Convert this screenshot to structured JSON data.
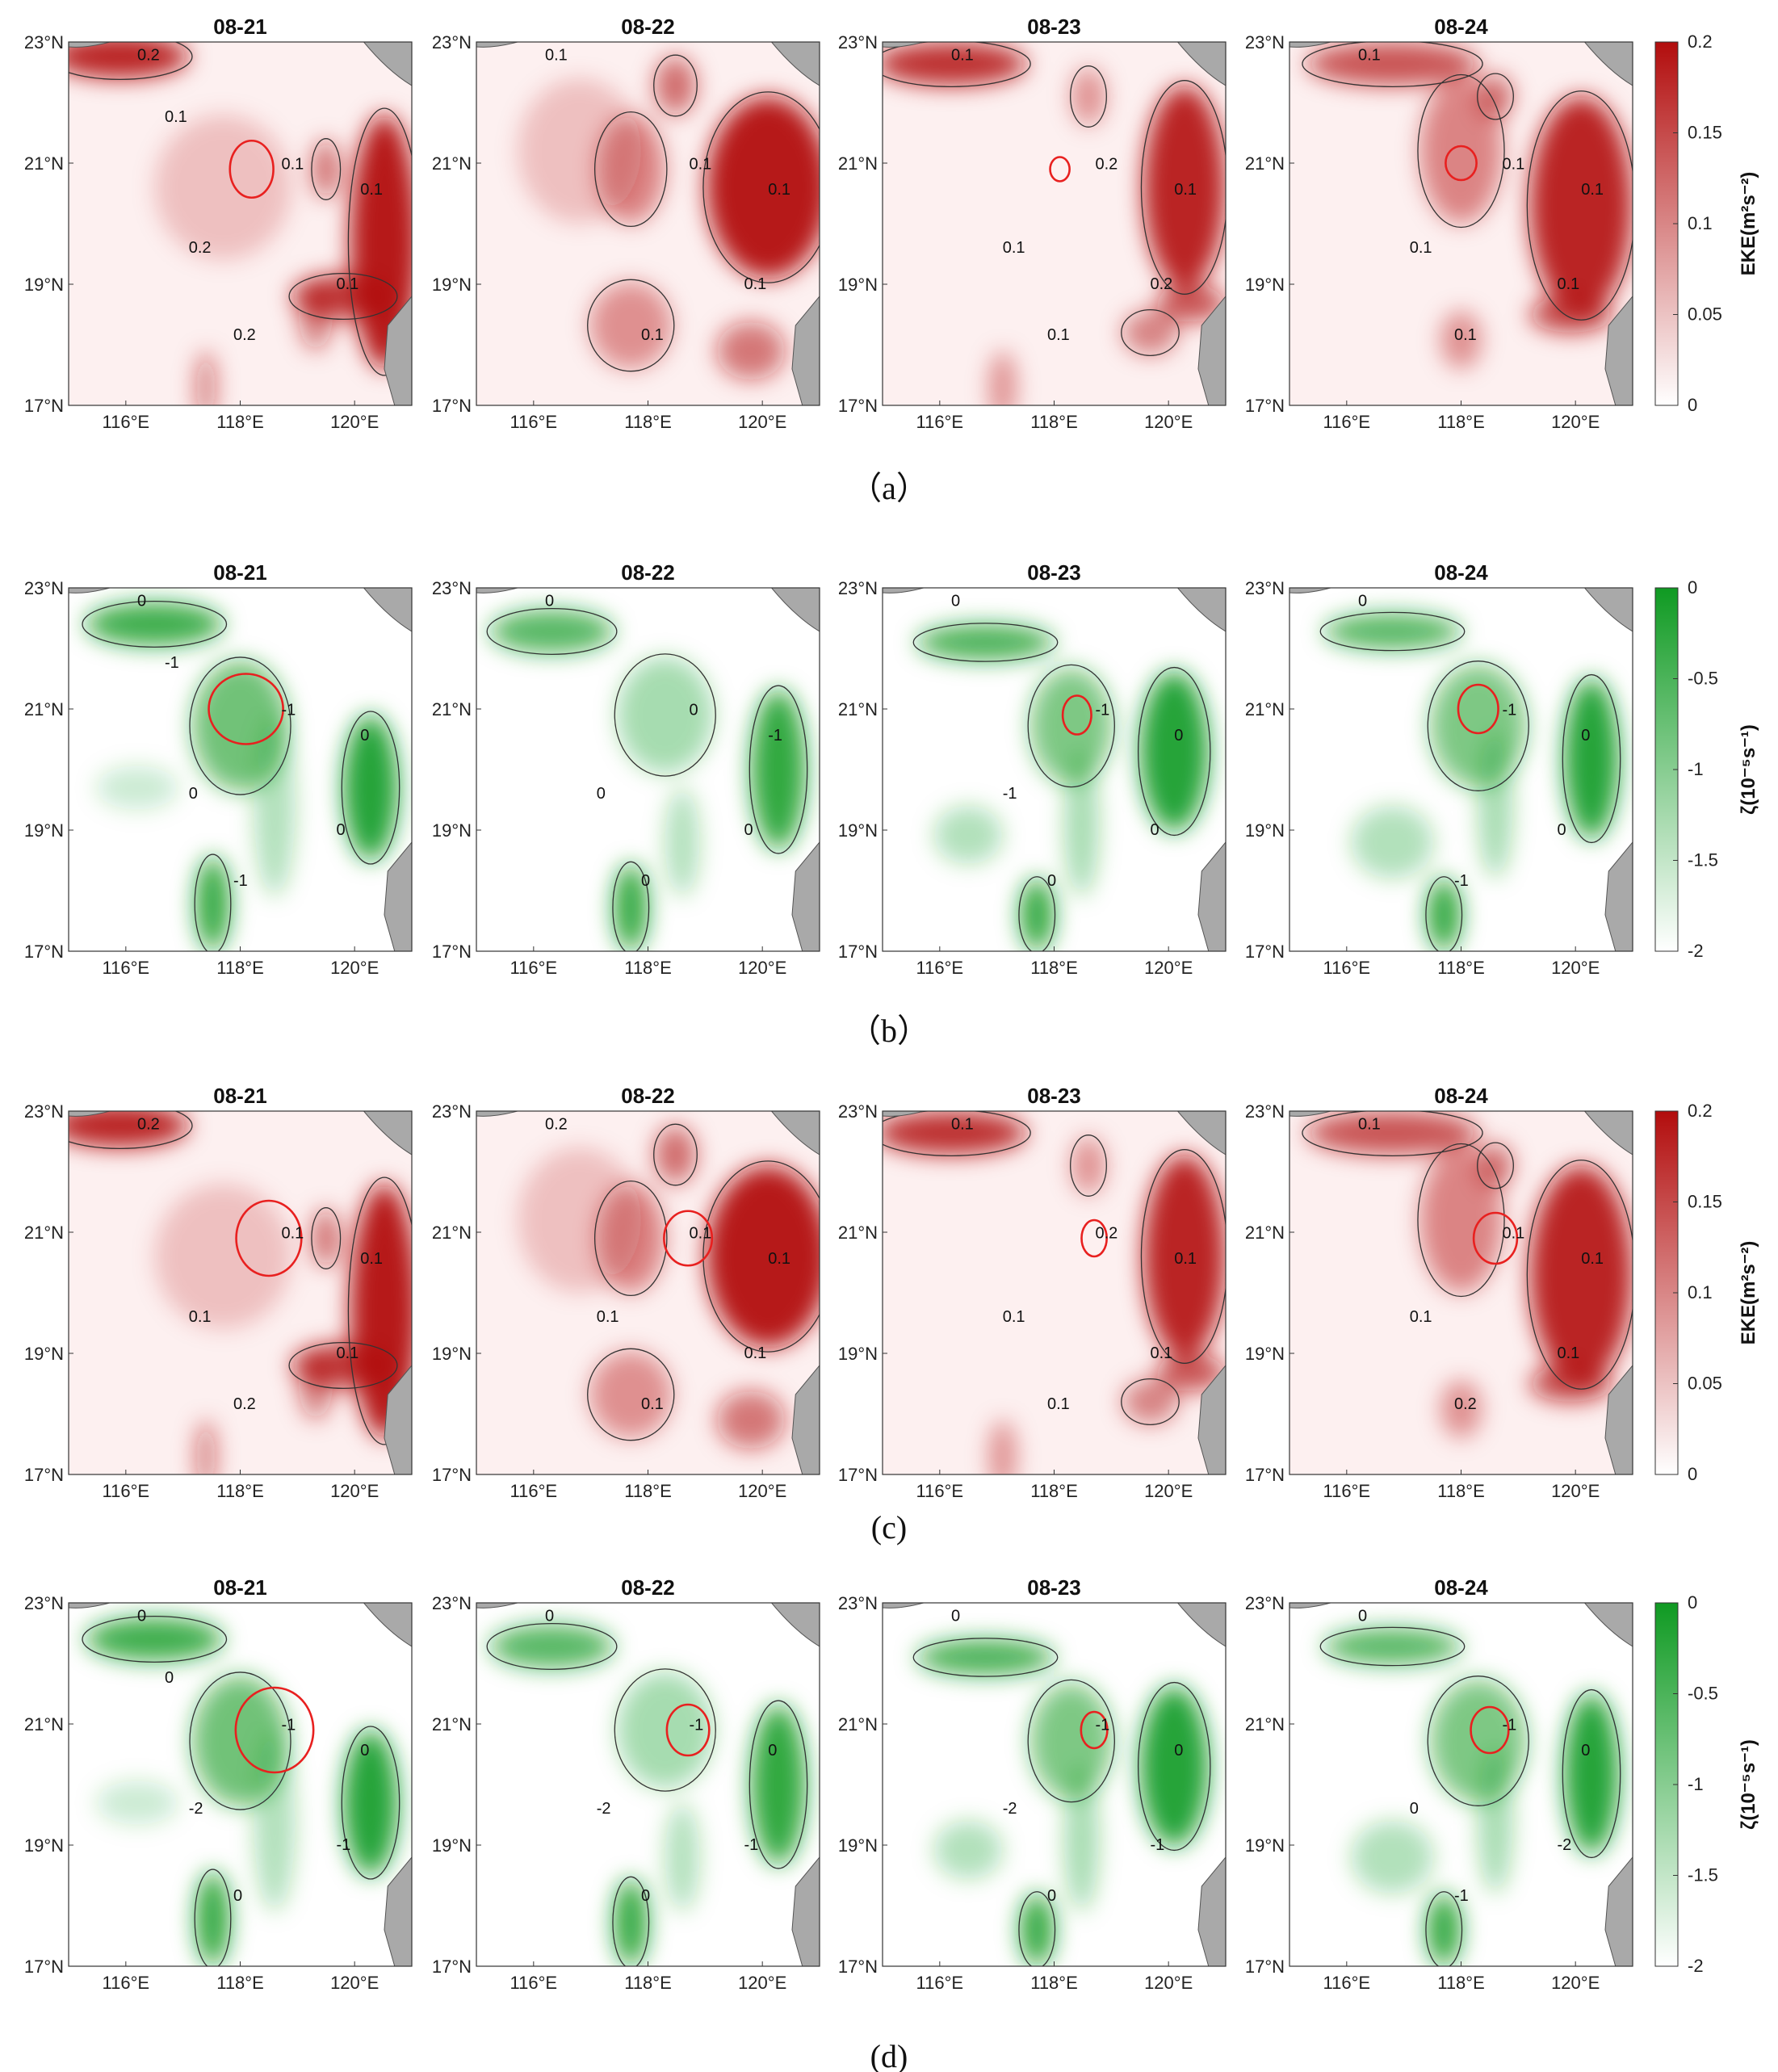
{
  "colors": {
    "eke_max": "#b20d0d",
    "vort_min": "#0f9a22",
    "land": "#a9a9a9",
    "eddy_outline": "#e8201f",
    "contour": "#333333"
  },
  "chart_data": [
    {
      "id": "a",
      "caption": "（a）",
      "type": "heatmap",
      "variable": "EKE",
      "colorbar": {
        "label": "EKE(m²s⁻²)",
        "ticks": [
          "0.2",
          "0.15",
          "0.1",
          "0.05",
          "0"
        ],
        "range": [
          0,
          0.2
        ],
        "colormap": "white-to-red"
      },
      "panels": [
        {
          "date": "08-21",
          "eddy_center": [
            118.2,
            20.9
          ],
          "eddy_radius": [
            0.38,
            0.47
          ],
          "contour_labels": [
            "0.2",
            "0.1",
            "0.1",
            "0.1",
            "0.2",
            "0.2",
            "0.1"
          ]
        },
        {
          "date": "08-22",
          "contour_labels": [
            "0.1",
            "0.1",
            "0.1",
            "0.1",
            "0.1"
          ]
        },
        {
          "date": "08-23",
          "eddy_center": [
            118.1,
            20.9
          ],
          "eddy_radius": [
            0.17,
            0.2
          ],
          "contour_labels": [
            "0.1",
            "0.2",
            "0.1",
            "0.2",
            "0.1",
            "0.1"
          ]
        },
        {
          "date": "08-24",
          "eddy_center": [
            118.0,
            21.0
          ],
          "eddy_radius": [
            0.27,
            0.28
          ],
          "contour_labels": [
            "0.1",
            "0.1",
            "0.1",
            "0.1",
            "0.1",
            "0.1"
          ]
        }
      ],
      "x_ticks": [
        "116°E",
        "118°E",
        "120°E"
      ],
      "y_ticks": [
        "23°N",
        "21°N",
        "19°N",
        "17°N"
      ],
      "xlim": [
        115,
        121
      ],
      "ylim": [
        17,
        23
      ]
    },
    {
      "id": "b",
      "caption": "（b）",
      "type": "heatmap",
      "variable": "relative vorticity",
      "colorbar": {
        "label": "ζ(10⁻⁵s⁻¹)",
        "ticks": [
          "0",
          "-0.5",
          "-1",
          "-1.5",
          "-2"
        ],
        "range": [
          -2,
          0
        ],
        "colormap": "white-to-green"
      },
      "panels": [
        {
          "date": "08-21",
          "eddy_center": [
            118.1,
            21.0
          ],
          "eddy_radius": [
            0.65,
            0.58
          ],
          "contour_labels": [
            "0",
            "-1",
            "0",
            "0",
            "-1",
            "0",
            "-1"
          ]
        },
        {
          "date": "08-22",
          "contour_labels": [
            "0",
            "0",
            "-1",
            "0",
            "0",
            "0"
          ]
        },
        {
          "date": "08-23",
          "eddy_center": [
            118.4,
            20.9
          ],
          "eddy_radius": [
            0.25,
            0.32
          ],
          "contour_labels": [
            "0",
            "-1",
            "0",
            "0",
            "0",
            "-1"
          ]
        },
        {
          "date": "08-24",
          "eddy_center": [
            118.3,
            21.0
          ],
          "eddy_radius": [
            0.35,
            0.4
          ],
          "contour_labels": [
            "0",
            "-1",
            "0",
            "0",
            "-1"
          ]
        }
      ],
      "x_ticks": [
        "116°E",
        "118°E",
        "120°E"
      ],
      "y_ticks": [
        "23°N",
        "21°N",
        "19°N",
        "17°N"
      ],
      "xlim": [
        115,
        121
      ],
      "ylim": [
        17,
        23
      ]
    },
    {
      "id": "c",
      "caption": "(c)",
      "type": "heatmap",
      "variable": "EKE",
      "colorbar": {
        "label": "EKE(m²s⁻²)",
        "ticks": [
          "0.2",
          "0.15",
          "0.1",
          "0.05",
          "0"
        ],
        "range": [
          0,
          0.2
        ],
        "colormap": "white-to-red"
      },
      "panels": [
        {
          "date": "08-21",
          "eddy_center": [
            118.5,
            20.9
          ],
          "eddy_radius": [
            0.57,
            0.62
          ],
          "contour_labels": [
            "0.2",
            "0.1",
            "0.1",
            "0.1",
            "0.2",
            "0.1"
          ]
        },
        {
          "date": "08-22",
          "eddy_center": [
            118.7,
            20.9
          ],
          "eddy_radius": [
            0.42,
            0.45
          ],
          "contour_labels": [
            "0.2",
            "0.1",
            "0.1",
            "0.1",
            "0.1",
            "0.1"
          ]
        },
        {
          "date": "08-23",
          "eddy_center": [
            118.7,
            20.9
          ],
          "eddy_radius": [
            0.22,
            0.3
          ],
          "contour_labels": [
            "0.1",
            "0.2",
            "0.1",
            "0.1",
            "0.1",
            "0.1"
          ]
        },
        {
          "date": "08-24",
          "eddy_center": [
            118.6,
            20.9
          ],
          "eddy_radius": [
            0.38,
            0.42
          ],
          "contour_labels": [
            "0.1",
            "0.1",
            "0.1",
            "0.1",
            "0.2",
            "0.1"
          ]
        }
      ],
      "x_ticks": [
        "116°E",
        "118°E",
        "120°E"
      ],
      "y_ticks": [
        "23°N",
        "21°N",
        "19°N",
        "17°N"
      ],
      "xlim": [
        115,
        121
      ],
      "ylim": [
        17,
        23
      ]
    },
    {
      "id": "d",
      "caption": "(d)",
      "type": "heatmap",
      "variable": "relative vorticity",
      "colorbar": {
        "label": "ζ(10⁻⁵s⁻¹)",
        "ticks": [
          "0",
          "-0.5",
          "-1",
          "-1.5",
          "-2"
        ],
        "range": [
          -2,
          0
        ],
        "colormap": "white-to-green"
      },
      "panels": [
        {
          "date": "08-21",
          "eddy_center": [
            118.6,
            20.9
          ],
          "eddy_radius": [
            0.68,
            0.7
          ],
          "contour_labels": [
            "0",
            "-1",
            "0",
            "-1",
            "0",
            "-2",
            "0"
          ]
        },
        {
          "date": "08-22",
          "eddy_center": [
            118.7,
            20.9
          ],
          "eddy_radius": [
            0.37,
            0.42
          ],
          "contour_labels": [
            "0",
            "-1",
            "0",
            "-1",
            "0",
            "-2"
          ]
        },
        {
          "date": "08-23",
          "eddy_center": [
            118.7,
            20.9
          ],
          "eddy_radius": [
            0.23,
            0.3
          ],
          "contour_labels": [
            "0",
            "-1",
            "0",
            "-1",
            "0",
            "-2"
          ]
        },
        {
          "date": "08-24",
          "eddy_center": [
            118.5,
            20.9
          ],
          "eddy_radius": [
            0.33,
            0.38
          ],
          "contour_labels": [
            "0",
            "-1",
            "0",
            "-2",
            "-1",
            "0"
          ]
        }
      ],
      "x_ticks": [
        "116°E",
        "118°E",
        "120°E"
      ],
      "y_ticks": [
        "23°N",
        "21°N",
        "19°N",
        "17°N"
      ],
      "xlim": [
        115,
        121
      ],
      "ylim": [
        17,
        23
      ]
    }
  ]
}
